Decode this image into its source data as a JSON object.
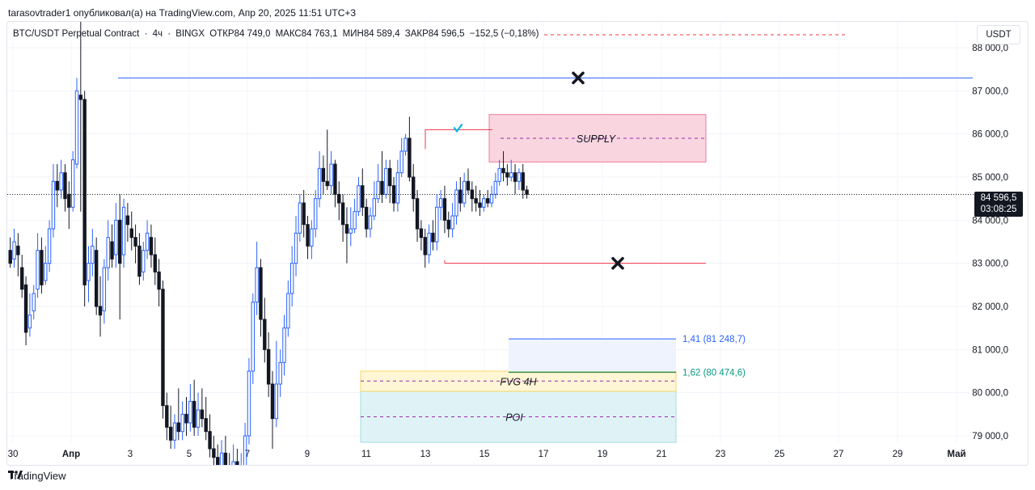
{
  "header": {
    "publisher": "tarasovtrader1 опубликовал(а) на TradingView.com, Апр 20, 2025 11:51 UTC+3"
  },
  "legend": {
    "symbol": "BTC/USDT Perpetual Contract",
    "interval": "4ч",
    "exchange": "BINGX",
    "open": "ОТКР84 749,0",
    "high": "МАКС84 763,1",
    "low": "МИН84 589,4",
    "close": "ЗАКР84 596,5",
    "change": "−152,5 (−0,18%)"
  },
  "currency": "USDT",
  "last_price": {
    "price": "84 596,5",
    "countdown": "03:08:25"
  },
  "footer": {
    "brand": "TradingView"
  },
  "chart_data": {
    "type": "candlestick",
    "x_ticks": [
      "30",
      "Апр",
      "3",
      "5",
      "7",
      "9",
      "11",
      "13",
      "15",
      "17",
      "19",
      "21",
      "23",
      "25",
      "27",
      "29",
      "Май"
    ],
    "y_ticks": [
      "88 000,0",
      "87 000,0",
      "86 000,0",
      "85 000,0",
      "84 000,0",
      "83 000,0",
      "82 000,0",
      "81 000,0",
      "80 000,0",
      "79 000,0"
    ],
    "ylim": [
      78850,
      88600
    ],
    "colors": {
      "up": "#2962ff",
      "down": "#131722",
      "accent_pink": "#f23645",
      "fib_blue": "#2962ff",
      "fib_green": "#089981"
    },
    "candles": [
      [
        83300,
        83000,
        83600,
        82900
      ],
      [
        83100,
        83500,
        83800,
        82900
      ],
      [
        83400,
        83200,
        83700,
        82700
      ],
      [
        82900,
        82400,
        83200,
        82200
      ],
      [
        82500,
        81400,
        82700,
        81100
      ],
      [
        81500,
        81800,
        82300,
        81300
      ],
      [
        81900,
        82300,
        82500,
        81700
      ],
      [
        82400,
        83300,
        83700,
        82200
      ],
      [
        83300,
        82500,
        83600,
        82300
      ],
      [
        82600,
        83000,
        83400,
        82500
      ],
      [
        83000,
        83800,
        84000,
        82800
      ],
      [
        83800,
        84900,
        85300,
        83600
      ],
      [
        84900,
        84700,
        85300,
        84300
      ],
      [
        84700,
        85100,
        85400,
        84500
      ],
      [
        85100,
        84500,
        85300,
        84200
      ],
      [
        84600,
        84300,
        84900,
        83800
      ],
      [
        84300,
        85400,
        85600,
        84200
      ],
      [
        85300,
        87000,
        87300,
        85200
      ],
      [
        86900,
        86800,
        88900,
        84200
      ],
      [
        86800,
        82500,
        87000,
        82000
      ],
      [
        82600,
        83000,
        83400,
        82100
      ],
      [
        83000,
        83400,
        83800,
        82700
      ],
      [
        83300,
        82000,
        83600,
        81800
      ],
      [
        82000,
        81800,
        82700,
        81300
      ],
      [
        81900,
        82900,
        83100,
        81600
      ],
      [
        82900,
        83600,
        84000,
        82600
      ],
      [
        83500,
        83100,
        83900,
        82900
      ],
      [
        83200,
        84000,
        84400,
        82900
      ],
      [
        84000,
        83000,
        84600,
        81700
      ],
      [
        83200,
        84300,
        84500,
        82900
      ],
      [
        84100,
        83900,
        84400,
        83500
      ],
      [
        83800,
        83600,
        84200,
        83300
      ],
      [
        83600,
        83400,
        83900,
        83000
      ],
      [
        83400,
        82700,
        83700,
        82500
      ],
      [
        82800,
        83300,
        83500,
        82600
      ],
      [
        83300,
        83700,
        84000,
        83100
      ],
      [
        83600,
        83200,
        83900,
        82900
      ],
      [
        83200,
        82800,
        83600,
        82500
      ],
      [
        82800,
        82400,
        83100,
        82000
      ],
      [
        82400,
        79700,
        82600,
        79400
      ],
      [
        79700,
        79200,
        80000,
        78900
      ],
      [
        79200,
        78900,
        79700,
        78700
      ],
      [
        78900,
        79300,
        79500,
        78700
      ],
      [
        79300,
        79100,
        80100,
        78900
      ],
      [
        79100,
        79500,
        79800,
        78900
      ],
      [
        79500,
        79300,
        79900,
        79000
      ],
      [
        79300,
        79800,
        80200,
        79100
      ],
      [
        79800,
        79200,
        80300,
        79000
      ],
      [
        79200,
        79600,
        80000,
        79000
      ],
      [
        79600,
        79400,
        80100,
        79200
      ],
      [
        79400,
        79100,
        79900,
        78900
      ],
      [
        79100,
        78700,
        79500,
        78500
      ],
      [
        78700,
        78500,
        79000,
        78300
      ],
      [
        78500,
        78200,
        78800,
        78000
      ],
      [
        78200,
        78600,
        78900,
        78000
      ],
      [
        78600,
        78300,
        79000,
        78100
      ],
      [
        78300,
        78100,
        78600,
        77900
      ],
      [
        78100,
        78400,
        78800,
        77800
      ],
      [
        78400,
        78000,
        78700,
        77800
      ],
      [
        78000,
        78300,
        78600,
        77800
      ],
      [
        78300,
        79000,
        79300,
        78100
      ],
      [
        79000,
        80500,
        80800,
        78800
      ],
      [
        80500,
        82100,
        82300,
        80200
      ],
      [
        82100,
        82900,
        83500,
        81800
      ],
      [
        82900,
        81700,
        83100,
        81300
      ],
      [
        81700,
        81000,
        82200,
        80700
      ],
      [
        81000,
        80200,
        81400,
        79900
      ],
      [
        80200,
        79400,
        80500,
        78700
      ],
      [
        79400,
        80200,
        81200,
        79200
      ],
      [
        80200,
        80700,
        81000,
        79900
      ],
      [
        80700,
        81500,
        81800,
        80400
      ],
      [
        81500,
        82300,
        82600,
        81300
      ],
      [
        82300,
        83000,
        83400,
        82000
      ],
      [
        83000,
        83700,
        84100,
        82700
      ],
      [
        83700,
        84400,
        84600,
        83500
      ],
      [
        84400,
        83900,
        84700,
        83600
      ],
      [
        83900,
        83400,
        84100,
        83100
      ],
      [
        83400,
        83800,
        84000,
        83100
      ],
      [
        83800,
        84500,
        84700,
        83600
      ],
      [
        84500,
        85200,
        85600,
        84300
      ],
      [
        85200,
        84900,
        85500,
        84600
      ],
      [
        84900,
        84800,
        86100,
        84700
      ],
      [
        84800,
        85300,
        85600,
        84600
      ],
      [
        85300,
        84600,
        85400,
        84300
      ],
      [
        84600,
        84400,
        84900,
        84000
      ],
      [
        84400,
        83900,
        84600,
        83500
      ],
      [
        83900,
        83700,
        84300,
        83000
      ],
      [
        83700,
        83800,
        84300,
        83400
      ],
      [
        83800,
        84200,
        84500,
        83700
      ],
      [
        84200,
        84800,
        85000,
        84100
      ],
      [
        84800,
        84300,
        85200,
        84100
      ],
      [
        84300,
        83800,
        84500,
        83600
      ],
      [
        83800,
        84100,
        84300,
        83600
      ],
      [
        84100,
        84500,
        84900,
        84000
      ],
      [
        84500,
        84900,
        85300,
        84400
      ],
      [
        84900,
        84600,
        85600,
        84400
      ],
      [
        84600,
        85200,
        85400,
        84500
      ],
      [
        85200,
        84800,
        85400,
        84400
      ],
      [
        84800,
        84400,
        85000,
        84200
      ],
      [
        84400,
        85100,
        85400,
        84200
      ],
      [
        85100,
        85600,
        85900,
        85000
      ],
      [
        85600,
        85900,
        86000,
        85500
      ],
      [
        85900,
        85000,
        86400,
        84900
      ],
      [
        85000,
        84500,
        85300,
        84200
      ],
      [
        84500,
        83800,
        84700,
        83500
      ],
      [
        83800,
        83600,
        84000,
        83300
      ],
      [
        83600,
        83200,
        83800,
        82900
      ],
      [
        83200,
        83700,
        83900,
        83000
      ],
      [
        83700,
        83500,
        84000,
        83300
      ],
      [
        83500,
        84300,
        84600,
        83300
      ],
      [
        84300,
        84500,
        84700,
        84000
      ],
      [
        84500,
        84000,
        84800,
        83700
      ],
      [
        84000,
        83800,
        84200,
        83600
      ],
      [
        83800,
        84100,
        84400,
        83600
      ],
      [
        84100,
        84700,
        84900,
        83900
      ],
      [
        84700,
        84400,
        85000,
        84200
      ],
      [
        84400,
        84900,
        85100,
        84300
      ],
      [
        84900,
        84700,
        85200,
        84600
      ],
      [
        84700,
        84500,
        84900,
        84200
      ],
      [
        84500,
        84400,
        84800,
        84200
      ],
      [
        84400,
        84300,
        84700,
        84100
      ],
      [
        84300,
        84500,
        84600,
        84200
      ],
      [
        84500,
        84400,
        84700,
        84300
      ],
      [
        84400,
        84600,
        84800,
        84300
      ],
      [
        84600,
        84900,
        85100,
        84500
      ],
      [
        84900,
        85200,
        85400,
        84800
      ],
      [
        85200,
        85100,
        85600,
        84900
      ],
      [
        85100,
        85000,
        85300,
        84800
      ],
      [
        85000,
        85100,
        85400,
        84900
      ],
      [
        85100,
        84900,
        85300,
        84600
      ],
      [
        84900,
        85100,
        85200,
        84700
      ],
      [
        85100,
        84700,
        85300,
        84500
      ],
      [
        84700,
        84600,
        84800,
        84500
      ]
    ],
    "annotations": {
      "supply_label": "SUPPLY",
      "fvg_label": "FVG 4H",
      "poi_label": "POI",
      "fib_141": "1,41 (81 248,7)",
      "fib_162": "1,62 (80 474,6)",
      "high_line": 87300,
      "low_line": 83000,
      "supply_zone": [
        85350,
        86450
      ],
      "fvg_zone": [
        80030,
        80500
      ],
      "poi_zone": [
        78850,
        80030
      ]
    }
  }
}
